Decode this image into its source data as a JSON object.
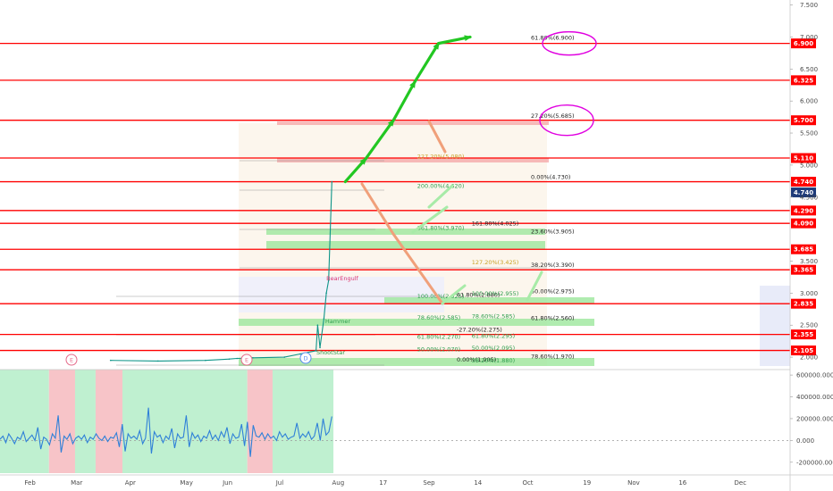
{
  "chart_data": {
    "type": "line",
    "price_axis": {
      "ylim": [
        1.82,
        7.55
      ],
      "ticks": [
        "7.500",
        "7.000",
        "6.500",
        "6.000",
        "5.500",
        "5.000",
        "4.500",
        "3.500",
        "3.000",
        "2.500",
        "2.000"
      ],
      "tick_values": [
        7.5,
        7.0,
        6.5,
        6.0,
        5.5,
        5.0,
        4.5,
        3.5,
        3.0,
        2.5,
        2.0
      ]
    },
    "time_axis": {
      "labels": [
        "Feb",
        "Mar",
        "Apr",
        "May",
        "Jun",
        "Jul",
        "Aug",
        "17",
        "Sep",
        "14",
        "Oct",
        "19",
        "Nov",
        "16",
        "Dec"
      ],
      "positions": [
        0.038,
        0.097,
        0.165,
        0.236,
        0.288,
        0.354,
        0.428,
        0.485,
        0.543,
        0.605,
        0.668,
        0.743,
        0.802,
        0.864,
        0.937
      ]
    },
    "resistance_levels": [
      {
        "value": 6.9,
        "label": "6.900"
      },
      {
        "value": 6.325,
        "label": "6.325"
      },
      {
        "value": 5.7,
        "label": "5.700"
      },
      {
        "value": 5.11,
        "label": "5.110"
      },
      {
        "value": 4.74,
        "label": "4.740"
      },
      {
        "value": 4.29,
        "label": "4.290"
      },
      {
        "value": 4.09,
        "label": "4.090"
      },
      {
        "value": 3.685,
        "label": "3.685"
      },
      {
        "value": 3.365,
        "label": "3.365"
      },
      {
        "value": 2.835,
        "label": "2.835"
      },
      {
        "value": 2.355,
        "label": "2.355"
      },
      {
        "value": 2.105,
        "label": "2.105"
      }
    ],
    "current_price": {
      "value": 4.74,
      "label": "4.740"
    },
    "fib_labels": [
      {
        "text": "61.80%(6.900)",
        "t": 0.672,
        "v": 6.96,
        "color": "#222222"
      },
      {
        "text": "27.20%(5.685)",
        "t": 0.672,
        "v": 5.74,
        "color": "#222222"
      },
      {
        "text": "0.00%(4.730)",
        "t": 0.672,
        "v": 4.78,
        "color": "#222222"
      },
      {
        "text": "23.60%(3.905)",
        "t": 0.672,
        "v": 3.93,
        "color": "#222222"
      },
      {
        "text": "38.20%(3.390)",
        "t": 0.672,
        "v": 3.41,
        "color": "#222222"
      },
      {
        "text": "50.00%(2.975)",
        "t": 0.672,
        "v": 3.0,
        "color": "#222222"
      },
      {
        "text": "61.80%(2.560)",
        "t": 0.672,
        "v": 2.58,
        "color": "#222222"
      },
      {
        "text": "78.60%(1.970)",
        "t": 0.672,
        "v": 1.98,
        "color": "#222222"
      },
      {
        "text": "227.20%(5.080)",
        "t": 0.528,
        "v": 5.1,
        "color": "#c9a227"
      },
      {
        "text": "200.00%(4.620)",
        "t": 0.528,
        "v": 4.64,
        "color": "#2e9e4e"
      },
      {
        "text": "161.80%(4.025)",
        "t": 0.597,
        "v": 4.06,
        "color": "#222222"
      },
      {
        "text": "361.80%(3.970)",
        "t": 0.528,
        "v": 3.99,
        "color": "#2e9e4e"
      },
      {
        "text": "127.20%(3.425)",
        "t": 0.597,
        "v": 3.45,
        "color": "#c9a227"
      },
      {
        "text": "61.80%(2.880)",
        "t": 0.578,
        "v": 2.94,
        "color": "#222222"
      },
      {
        "text": "100.00%(2.925)",
        "t": 0.528,
        "v": 2.92,
        "color": "#2e9e4e"
      },
      {
        "text": "100.00%(2.955)",
        "t": 0.597,
        "v": 2.96,
        "color": "#2e9e4e"
      },
      {
        "text": "78.60%(2.585)",
        "t": 0.528,
        "v": 2.59,
        "color": "#2e9e4e"
      },
      {
        "text": "78.60%(2.585)",
        "t": 0.597,
        "v": 2.61,
        "color": "#2e9e4e"
      },
      {
        "text": "-27.20%(2.275)",
        "t": 0.578,
        "v": 2.4,
        "color": "#222222"
      },
      {
        "text": "61.80%(2.270)",
        "t": 0.528,
        "v": 2.29,
        "color": "#2e9e4e"
      },
      {
        "text": "61.80%(2.295)",
        "t": 0.597,
        "v": 2.3,
        "color": "#2e9e4e"
      },
      {
        "text": "50.00%(2.070)",
        "t": 0.528,
        "v": 2.09,
        "color": "#2e9e4e"
      },
      {
        "text": "50.00%(2.095)",
        "t": 0.597,
        "v": 2.11,
        "color": "#2e9e4e"
      },
      {
        "text": "0.00%(1.905)",
        "t": 0.578,
        "v": 1.93,
        "color": "#222222"
      },
      {
        "text": "38.20%(1.880)",
        "t": 0.597,
        "v": 1.92,
        "color": "#2e9e4e"
      }
    ],
    "annotations": [
      "BearEngulf",
      "Hammer",
      "ShootStar"
    ],
    "markers": [
      "E",
      "E",
      "D"
    ],
    "price_path": {
      "t": [
        0.14,
        0.2,
        0.26,
        0.29,
        0.3,
        0.32,
        0.36,
        0.38,
        0.4,
        0.402,
        0.405,
        0.41,
        0.413,
        0.416,
        0.42
      ],
      "v": [
        1.95,
        1.94,
        1.95,
        1.97,
        1.98,
        1.99,
        2.0,
        2.05,
        2.1,
        2.5,
        2.15,
        2.6,
        3.0,
        3.2,
        4.74
      ]
    },
    "projection_path": {
      "t": [
        0.437,
        0.463,
        0.498,
        0.525,
        0.555,
        0.595
      ],
      "v": [
        4.74,
        5.1,
        5.7,
        6.3,
        6.9,
        7.0
      ]
    },
    "indicator": {
      "ylim": [
        -300000,
        650000
      ],
      "ticks": [
        "600000.000",
        "400000.000",
        "200000.000",
        "0.000",
        "-200000.000"
      ],
      "tick_values": [
        600000,
        400000,
        200000,
        0,
        -200000
      ],
      "values": [
        10000,
        40000,
        -20000,
        60000,
        20000,
        -30000,
        30000,
        10000,
        80000,
        -10000,
        20000,
        50000,
        0,
        120000,
        -80000,
        30000,
        10000,
        -40000,
        60000,
        20000,
        230000,
        -110000,
        40000,
        10000,
        60000,
        -30000,
        20000,
        40000,
        10000,
        50000,
        -20000,
        30000,
        10000,
        60000,
        20000,
        0,
        40000,
        -10000,
        30000,
        20000,
        70000,
        -60000,
        150000,
        -100000,
        60000,
        20000,
        40000,
        10000,
        90000,
        -30000,
        20000,
        300000,
        -120000,
        80000,
        30000,
        50000,
        -20000,
        40000,
        10000,
        110000,
        -70000,
        60000,
        20000,
        30000,
        230000,
        -60000,
        70000,
        20000,
        50000,
        -10000,
        40000,
        20000,
        90000,
        10000,
        50000,
        0,
        80000,
        30000,
        120000,
        -30000,
        60000,
        20000,
        30000,
        150000,
        -50000,
        170000,
        -150000,
        140000,
        40000,
        30000,
        70000,
        10000,
        60000,
        20000,
        40000,
        0,
        80000,
        30000,
        60000,
        10000,
        30000,
        40000,
        160000,
        20000,
        60000,
        30000,
        80000,
        10000,
        40000,
        160000,
        0,
        200000,
        50000,
        80000,
        220000
      ],
      "zones": [
        {
          "t0": 0.0,
          "t1": 0.062,
          "color": "#bff0d0"
        },
        {
          "t0": 0.062,
          "t1": 0.095,
          "color": "#f7c4c8"
        },
        {
          "t0": 0.095,
          "t1": 0.121,
          "color": "#bff0d0"
        },
        {
          "t0": 0.121,
          "t1": 0.155,
          "color": "#f7c4c8"
        },
        {
          "t0": 0.155,
          "t1": 0.313,
          "color": "#bff0d0"
        },
        {
          "t0": 0.313,
          "t1": 0.345,
          "color": "#f7c4c8"
        },
        {
          "t0": 0.345,
          "t1": 0.422,
          "color": "#bff0d0"
        }
      ]
    }
  },
  "colors": {
    "level": "#ff0000",
    "projection": "#22c722",
    "highlight": "#e000e0",
    "indicator_line": "#2f80d8",
    "tag_current": "#1f3b7a",
    "price": "#0d9488"
  }
}
